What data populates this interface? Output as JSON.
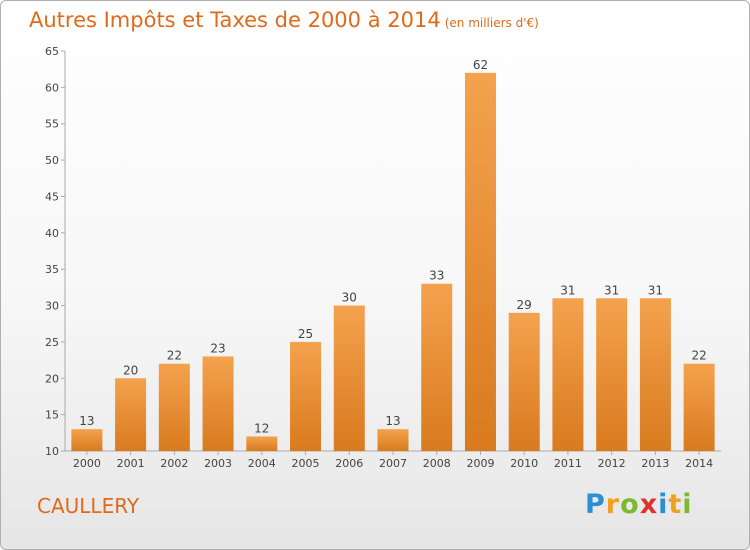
{
  "header": {
    "title": "Autres Impôts et Taxes de 2000 à 2014",
    "subtitle": "(en milliers d'€)"
  },
  "commune": "CAULLERY",
  "logo": {
    "text": "Proxiti",
    "letters": [
      {
        "char": "P",
        "color": "#2a8fd4"
      },
      {
        "char": "r",
        "color": "#f0a020"
      },
      {
        "char": "o",
        "color": "#7cb832"
      },
      {
        "char": "x",
        "color": "#e03030"
      },
      {
        "char": "i",
        "color": "#2a8fd4"
      },
      {
        "char": "t",
        "color": "#f0a020"
      },
      {
        "char": "i",
        "color": "#7cb832"
      }
    ]
  },
  "colors": {
    "accent": "#e06a1a",
    "bar_light": "#f4a24e",
    "bar_dark": "#d97a1e"
  },
  "chart_data": {
    "type": "bar",
    "title": "Autres Impôts et Taxes de 2000 à 2014",
    "subtitle": "(en milliers d'€)",
    "categories": [
      "2000",
      "2001",
      "2002",
      "2003",
      "2004",
      "2005",
      "2006",
      "2007",
      "2008",
      "2009",
      "2010",
      "2011",
      "2012",
      "2013",
      "2014"
    ],
    "values": [
      13,
      20,
      22,
      23,
      12,
      25,
      30,
      13,
      33,
      62,
      29,
      31,
      31,
      31,
      22
    ],
    "ylim": [
      10,
      65
    ],
    "yticks": [
      10,
      15,
      20,
      25,
      30,
      35,
      40,
      45,
      50,
      55,
      60,
      65
    ],
    "grid": false,
    "data_labels": true
  }
}
